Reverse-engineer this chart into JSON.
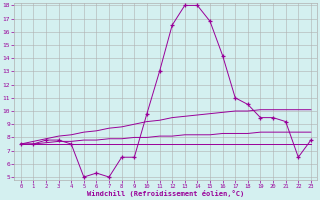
{
  "x": [
    0,
    1,
    2,
    3,
    4,
    5,
    6,
    7,
    8,
    9,
    10,
    11,
    12,
    13,
    14,
    15,
    16,
    17,
    18,
    19,
    20,
    21,
    22,
    23
  ],
  "y_main": [
    7.5,
    7.5,
    7.8,
    7.8,
    7.5,
    5.0,
    5.3,
    5.0,
    6.5,
    6.5,
    9.8,
    13.0,
    16.5,
    18.0,
    18.0,
    16.8,
    14.2,
    11.0,
    10.5,
    9.5,
    9.5,
    9.2,
    6.5,
    7.8
  ],
  "y_line1": [
    7.5,
    7.7,
    7.9,
    8.1,
    8.2,
    8.4,
    8.5,
    8.7,
    8.8,
    9.0,
    9.2,
    9.3,
    9.5,
    9.6,
    9.7,
    9.8,
    9.9,
    10.0,
    10.0,
    10.1,
    10.1,
    10.1,
    10.1,
    10.1
  ],
  "y_line2": [
    7.5,
    7.5,
    7.6,
    7.7,
    7.7,
    7.8,
    7.8,
    7.9,
    7.9,
    8.0,
    8.0,
    8.1,
    8.1,
    8.2,
    8.2,
    8.2,
    8.3,
    8.3,
    8.3,
    8.4,
    8.4,
    8.4,
    8.4,
    8.4
  ],
  "y_line3": [
    7.5,
    7.5,
    7.5,
    7.5,
    7.5,
    7.5,
    7.5,
    7.5,
    7.5,
    7.5,
    7.5,
    7.5,
    7.5,
    7.5,
    7.5,
    7.5,
    7.5,
    7.5,
    7.5,
    7.5,
    7.5,
    7.5,
    7.5,
    7.5
  ],
  "color": "#990099",
  "bg_color": "#d4f0f0",
  "grid_color": "#b0b0b0",
  "xlabel": "Windchill (Refroidissement éolien,°C)",
  "ylim": [
    5,
    18
  ],
  "xlim": [
    -0.5,
    23.5
  ],
  "yticks": [
    5,
    6,
    7,
    8,
    9,
    10,
    11,
    12,
    13,
    14,
    15,
    16,
    17,
    18
  ],
  "xticks": [
    0,
    1,
    2,
    3,
    4,
    5,
    6,
    7,
    8,
    9,
    10,
    11,
    12,
    13,
    14,
    15,
    16,
    17,
    18,
    19,
    20,
    21,
    22,
    23
  ]
}
